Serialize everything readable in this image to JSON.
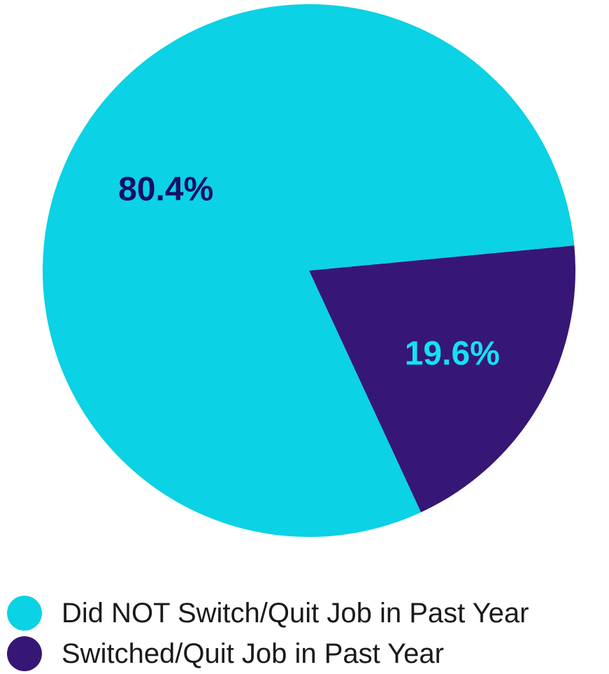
{
  "chart_data": {
    "type": "pie",
    "title": "",
    "start_angle_deg": -5.4,
    "slices": [
      {
        "name": "Switched/Quit Job in Past Year",
        "value": 19.6,
        "label": "19.6%",
        "color": "#361776",
        "label_color": "#14e1f4"
      },
      {
        "name": "Did NOT Switch/Quit Job in Past Year",
        "value": 80.4,
        "label": "80.4%",
        "color": "#0bd2e4",
        "label_color": "#130f6a"
      }
    ],
    "legend": {
      "placement": "bottom-left",
      "entries": [
        {
          "label": "Did NOT Switch/Quit Job in Past Year",
          "color": "#0bd2e4"
        },
        {
          "label": "Switched/Quit Job in Past Year",
          "color": "#361776"
        }
      ]
    }
  }
}
